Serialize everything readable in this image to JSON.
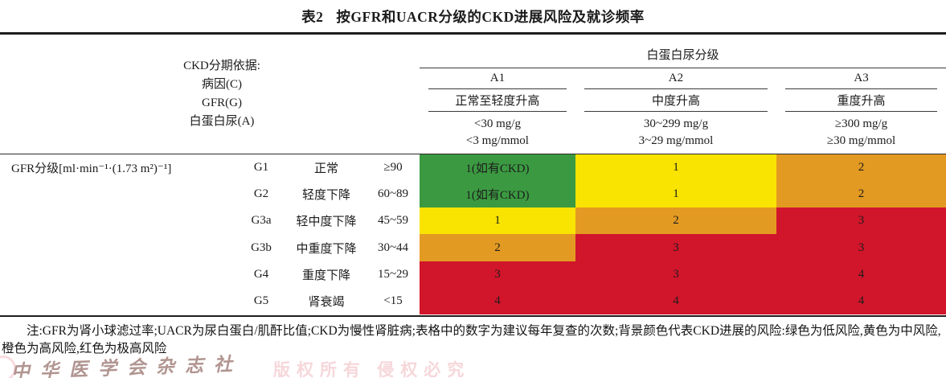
{
  "title": {
    "prefix": "表2",
    "text": "按GFR和UACR分级的CKD进展风险及就诊频率"
  },
  "header": {
    "left_lines": [
      "CKD分期依据:",
      "病因(C)",
      "GFR(G)",
      "白蛋白尿(A)"
    ],
    "albuminuria_title": "白蛋白尿分级",
    "columns": [
      {
        "code": "A1",
        "desc": "正常至轻度升高",
        "range_mg_g": "<30 mg/g",
        "range_mg_mmol": "<3 mg/mmol"
      },
      {
        "code": "A2",
        "desc": "中度升高",
        "range_mg_g": "30~299 mg/g",
        "range_mg_mmol": "3~29 mg/mmol"
      },
      {
        "code": "A3",
        "desc": "重度升高",
        "range_mg_g": "≥300 mg/g",
        "range_mg_mmol": "≥30 mg/mmol"
      }
    ]
  },
  "body": {
    "gfr_axis_label": "GFR分级[ml·min⁻¹·(1.73 m²)⁻¹]",
    "rows": [
      {
        "code": "G1",
        "desc": "正常",
        "range": "≥90",
        "cells": [
          {
            "text": "1(如有CKD)",
            "risk": "green"
          },
          {
            "text": "1",
            "risk": "yellow"
          },
          {
            "text": "2",
            "risk": "orange"
          }
        ]
      },
      {
        "code": "G2",
        "desc": "轻度下降",
        "range": "60~89",
        "cells": [
          {
            "text": "1(如有CKD)",
            "risk": "green"
          },
          {
            "text": "1",
            "risk": "yellow"
          },
          {
            "text": "2",
            "risk": "orange"
          }
        ]
      },
      {
        "code": "G3a",
        "desc": "轻中度下降",
        "range": "45~59",
        "cells": [
          {
            "text": "1",
            "risk": "yellow"
          },
          {
            "text": "2",
            "risk": "orange"
          },
          {
            "text": "3",
            "risk": "red"
          }
        ]
      },
      {
        "code": "G3b",
        "desc": "中重度下降",
        "range": "30~44",
        "cells": [
          {
            "text": "2",
            "risk": "orange"
          },
          {
            "text": "3",
            "risk": "red"
          },
          {
            "text": "3",
            "risk": "red"
          }
        ]
      },
      {
        "code": "G4",
        "desc": "重度下降",
        "range": "15~29",
        "cells": [
          {
            "text": "3",
            "risk": "red"
          },
          {
            "text": "3",
            "risk": "red"
          },
          {
            "text": "4",
            "risk": "red"
          }
        ]
      },
      {
        "code": "G5",
        "desc": "肾衰竭",
        "range": "<15",
        "cells": [
          {
            "text": "4",
            "risk": "red"
          },
          {
            "text": "4",
            "risk": "red"
          },
          {
            "text": "4",
            "risk": "red"
          }
        ]
      }
    ]
  },
  "risk_colors": {
    "green": "#3b9a41",
    "yellow": "#f9e300",
    "orange": "#e39a22",
    "red": "#d1152b"
  },
  "note": {
    "text": "注:GFR为肾小球滤过率;UACR为尿白蛋白/肌酐比值;CKD为慢性肾脏病;表格中的数字为建议每年复查的次数;背景颜色代表CKD进展的风险:绿色为低风险,黄色为中风险,橙色为高风险,红色为极高风险"
  },
  "watermark": {
    "publisher_script": "中华医学会杂志社",
    "copyright_faint": "版权所有 侵权必究"
  }
}
